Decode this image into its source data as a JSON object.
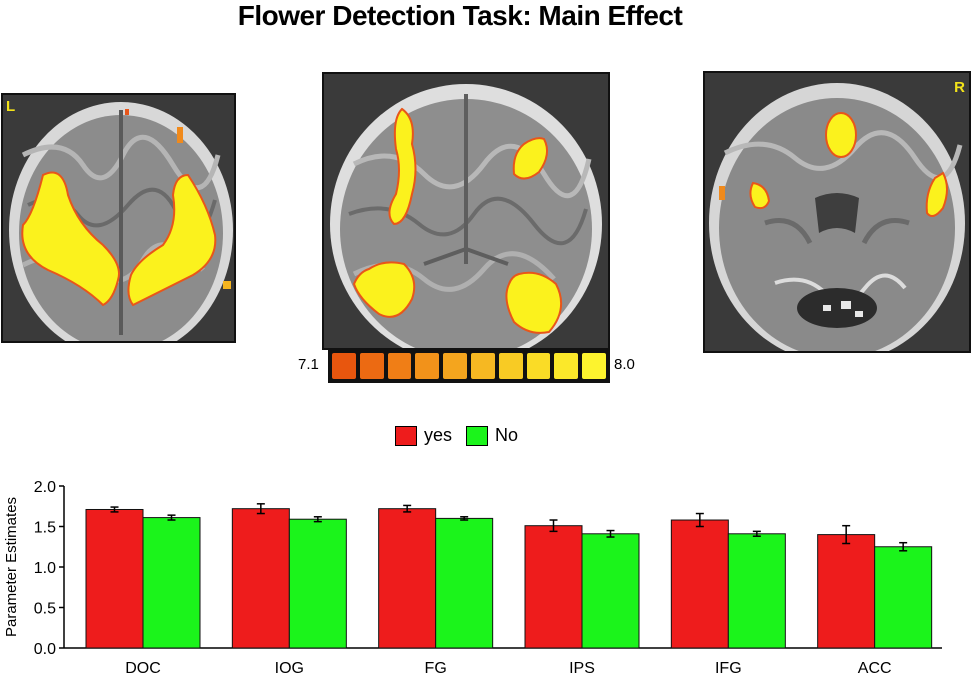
{
  "title": "Flower Detection Task: Main Effect",
  "panels": {
    "left_label": "L",
    "right_label": "R"
  },
  "colorbar": {
    "min_label": "7.1",
    "max_label": "8.0",
    "colors": [
      "#e8560e",
      "#ec6a12",
      "#f07e16",
      "#f2921a",
      "#f4a51e",
      "#f6b822",
      "#f8cb24",
      "#fadc26",
      "#fbe82a",
      "#fdf32e"
    ]
  },
  "chart_data": {
    "type": "bar",
    "categories": [
      "DOC",
      "IOG",
      "FG",
      "IPS",
      "IFG",
      "ACC"
    ],
    "series": [
      {
        "name": "yes",
        "color": "#ee1c1c",
        "values": [
          1.71,
          1.72,
          1.72,
          1.51,
          1.58,
          1.4
        ],
        "errors": [
          0.03,
          0.06,
          0.04,
          0.07,
          0.08,
          0.11
        ]
      },
      {
        "name": "No",
        "color": "#1bf41b",
        "values": [
          1.61,
          1.59,
          1.6,
          1.41,
          1.41,
          1.25
        ],
        "errors": [
          0.03,
          0.03,
          0.02,
          0.04,
          0.03,
          0.05
        ]
      }
    ],
    "ylabel": "Parameter Estimates",
    "ylim": [
      0,
      2.0
    ],
    "yticks": [
      "0.0",
      "0.5",
      "1.0",
      "1.5",
      "2.0"
    ],
    "ytick_values": [
      0,
      0.5,
      1.0,
      1.5,
      2.0
    ],
    "grid": false,
    "legend": "top-center"
  }
}
